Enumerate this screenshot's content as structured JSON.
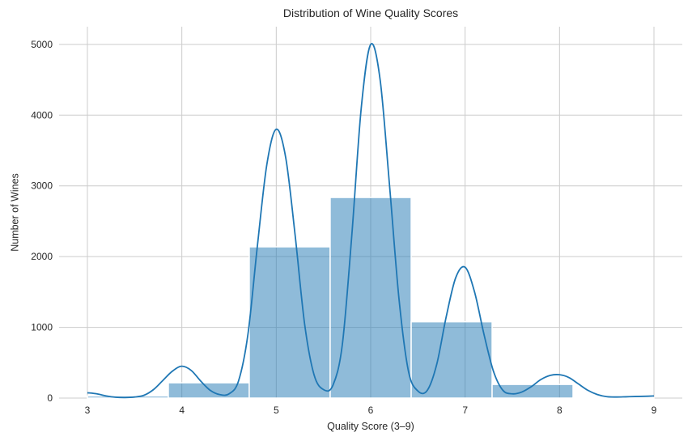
{
  "chart_data": {
    "type": "histogram",
    "title": "Distribution of Wine Quality Scores",
    "xlabel": "Quality Score (3–9)",
    "ylabel": "Number of Wines",
    "xlim": [
      2.7,
      9.3
    ],
    "ylim": [
      0,
      5250
    ],
    "x_ticks": [
      3,
      4,
      5,
      6,
      7,
      8,
      9
    ],
    "y_ticks": [
      0,
      1000,
      2000,
      3000,
      4000,
      5000
    ],
    "grid": true,
    "bin_width": 0.857,
    "bins": [
      {
        "x0": 3.0,
        "x1": 3.857,
        "count": 30
      },
      {
        "x0": 3.857,
        "x1": 4.714,
        "count": 216
      },
      {
        "x0": 4.714,
        "x1": 5.571,
        "count": 2138
      },
      {
        "x0": 5.571,
        "x1": 6.429,
        "count": 2836
      },
      {
        "x0": 6.429,
        "x1": 7.286,
        "count": 1079
      },
      {
        "x0": 7.286,
        "x1": 8.143,
        "count": 193
      },
      {
        "x0": 8.143,
        "x1": 9.0,
        "count": 5
      }
    ],
    "kde": {
      "x": [
        3.0,
        3.1,
        3.2,
        3.3,
        3.4,
        3.5,
        3.6,
        3.7,
        3.8,
        3.9,
        4.0,
        4.1,
        4.2,
        4.3,
        4.4,
        4.5,
        4.6,
        4.7,
        4.8,
        4.9,
        5.0,
        5.1,
        5.2,
        5.3,
        5.4,
        5.5,
        5.6,
        5.7,
        5.8,
        5.9,
        6.0,
        6.1,
        6.2,
        6.3,
        6.4,
        6.5,
        6.6,
        6.7,
        6.8,
        6.9,
        7.0,
        7.1,
        7.2,
        7.3,
        7.4,
        7.5,
        7.6,
        7.7,
        7.8,
        7.9,
        8.0,
        8.1,
        8.2,
        8.3,
        8.4,
        8.5,
        8.6,
        8.7,
        8.8,
        8.9,
        9.0
      ],
      "y": [
        75,
        60,
        30,
        12,
        8,
        15,
        40,
        120,
        250,
        380,
        450,
        390,
        240,
        110,
        50,
        60,
        240,
        900,
        2150,
        3300,
        3800,
        3400,
        2300,
        1050,
        330,
        120,
        180,
        760,
        2300,
        4100,
        5000,
        4500,
        3000,
        1400,
        380,
        100,
        110,
        480,
        1150,
        1700,
        1850,
        1500,
        900,
        380,
        110,
        60,
        85,
        160,
        260,
        320,
        330,
        290,
        200,
        110,
        50,
        20,
        15,
        18,
        22,
        25,
        30
      ]
    },
    "colors": {
      "bar_fill": "#1f77b4",
      "bar_edge": "#ffffff",
      "kde_line": "#1f77b4",
      "grid": "#cccccc",
      "tick_text": "#262626"
    }
  }
}
